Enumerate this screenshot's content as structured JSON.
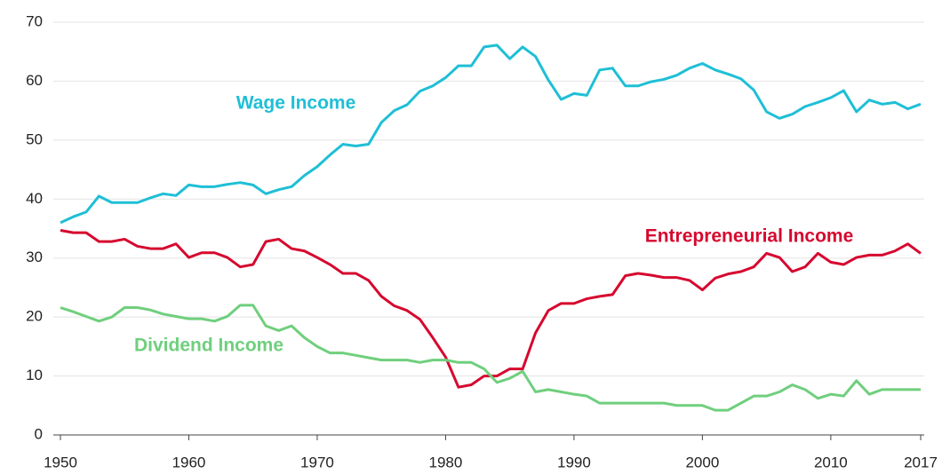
{
  "chart_data": {
    "type": "line",
    "x": [
      1950,
      1951,
      1952,
      1953,
      1954,
      1955,
      1956,
      1957,
      1958,
      1959,
      1960,
      1961,
      1962,
      1963,
      1964,
      1965,
      1966,
      1967,
      1968,
      1969,
      1970,
      1971,
      1972,
      1973,
      1974,
      1975,
      1976,
      1977,
      1978,
      1979,
      1980,
      1981,
      1982,
      1983,
      1984,
      1985,
      1986,
      1987,
      1988,
      1989,
      1990,
      1991,
      1992,
      1993,
      1994,
      1995,
      1996,
      1997,
      1998,
      1999,
      2000,
      2001,
      2002,
      2003,
      2004,
      2005,
      2006,
      2007,
      2008,
      2009,
      2010,
      2011,
      2012,
      2013,
      2014,
      2015,
      2016,
      2017
    ],
    "series": [
      {
        "name": "Wage Income",
        "color": "#1ebfd6",
        "values": [
          36,
          37,
          37.8,
          40.5,
          39.4,
          39.4,
          39.4,
          40.2,
          40.9,
          40.6,
          42.4,
          42.1,
          42.1,
          42.5,
          42.8,
          42.4,
          40.9,
          41.6,
          42.1,
          44,
          45.5,
          47.5,
          49.3,
          49,
          49.3,
          53,
          55,
          56,
          58.3,
          59.2,
          60.6,
          62.6,
          62.6,
          65.8,
          66.1,
          63.8,
          65.8,
          64.2,
          60.2,
          56.9,
          57.9,
          57.6,
          61.9,
          62.2,
          59.2,
          59.2,
          59.9,
          60.3,
          61,
          62.2,
          63,
          61.9,
          61.2,
          60.4,
          58.5,
          54.8,
          53.7,
          54.4,
          55.7,
          56.4,
          57.2,
          58.4,
          54.8,
          56.8,
          56.1,
          56.4,
          55.3,
          56.1
        ]
      },
      {
        "name": "Entrepreneurial Income",
        "color": "#d6082f",
        "values": [
          34.7,
          34.3,
          34.3,
          32.8,
          32.8,
          33.2,
          32,
          31.6,
          31.6,
          32.4,
          30.1,
          30.9,
          30.9,
          30.1,
          28.5,
          28.9,
          32.8,
          33.2,
          31.6,
          31.2,
          30.1,
          28.9,
          27.4,
          27.4,
          26.2,
          23.5,
          21.9,
          21.1,
          19.6,
          16.5,
          13.2,
          8.1,
          8.5,
          10,
          10,
          11.2,
          11.2,
          17.3,
          21.1,
          22.3,
          22.3,
          23.1,
          23.5,
          23.8,
          27,
          27.4,
          27.1,
          26.7,
          26.7,
          26.2,
          24.6,
          26.6,
          27.3,
          27.7,
          28.5,
          30.8,
          30.1,
          27.7,
          28.5,
          30.8,
          29.3,
          28.9,
          30.1,
          30.5,
          30.5,
          31.2,
          32.4,
          30.8
        ]
      },
      {
        "name": "Dividend Income",
        "color": "#6fcf7d",
        "values": [
          21.6,
          20.9,
          20.1,
          19.3,
          20,
          21.6,
          21.6,
          21.2,
          20.5,
          20.1,
          19.7,
          19.7,
          19.3,
          20.1,
          22,
          22,
          18.5,
          17.7,
          18.5,
          16.5,
          15,
          13.9,
          13.9,
          13.5,
          13.1,
          12.7,
          12.7,
          12.7,
          12.3,
          12.7,
          12.7,
          12.3,
          12.3,
          11.2,
          8.9,
          9.6,
          10.8,
          7.3,
          7.7,
          7.3,
          6.9,
          6.6,
          5.4,
          5.4,
          5.4,
          5.4,
          5.4,
          5.4,
          5,
          5,
          5,
          4.2,
          4.2,
          5.4,
          6.6,
          6.6,
          7.3,
          8.5,
          7.7,
          6.2,
          6.9,
          6.6,
          9.2,
          6.9,
          7.7,
          7.7,
          7.7,
          7.7
        ]
      }
    ],
    "xlim": [
      1950,
      2017
    ],
    "xticks": [
      1950,
      1960,
      1970,
      1980,
      1990,
      2000,
      2010,
      2017
    ],
    "ylim": [
      0,
      70
    ],
    "yticks": [
      0,
      10,
      20,
      30,
      40,
      50,
      60,
      70
    ],
    "grid": true
  }
}
